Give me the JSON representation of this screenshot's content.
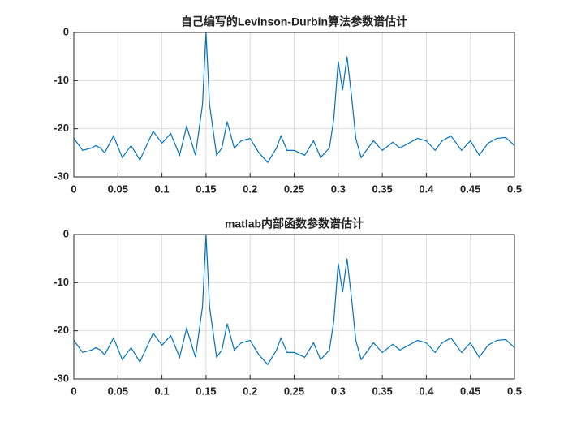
{
  "chart_data": [
    {
      "type": "line",
      "title": "自己编写的Levinson-Durbin算法参数谱估计",
      "x": [
        0,
        0.01,
        0.02,
        0.025,
        0.03,
        0.035,
        0.045,
        0.055,
        0.065,
        0.075,
        0.09,
        0.1,
        0.11,
        0.12,
        0.128,
        0.138,
        0.146,
        0.15,
        0.154,
        0.162,
        0.168,
        0.174,
        0.182,
        0.19,
        0.2,
        0.21,
        0.22,
        0.23,
        0.235,
        0.242,
        0.25,
        0.262,
        0.272,
        0.28,
        0.29,
        0.295,
        0.3,
        0.305,
        0.31,
        0.315,
        0.32,
        0.326,
        0.34,
        0.35,
        0.362,
        0.37,
        0.39,
        0.4,
        0.41,
        0.418,
        0.428,
        0.44,
        0.45,
        0.46,
        0.47,
        0.48,
        0.49,
        0.5
      ],
      "series": [
        {
          "color": "#0072bd",
          "values": [
            -22,
            -24.5,
            -24,
            -23.5,
            -24,
            -25,
            -21.5,
            -26,
            -23.5,
            -26.5,
            -20.5,
            -23,
            -21,
            -25.5,
            -19.5,
            -25.5,
            -15,
            0,
            -15,
            -25.5,
            -24,
            -18.5,
            -24,
            -22.5,
            -22,
            -25,
            -27,
            -24,
            -21.5,
            -24.5,
            -24.5,
            -25.5,
            -22.5,
            -26,
            -24,
            -18,
            -6,
            -12,
            -5,
            -13,
            -22,
            -26,
            -22.5,
            -24.5,
            -22.8,
            -24,
            -22,
            -22.5,
            -24.5,
            -22.5,
            -21.5,
            -24.5,
            -22.5,
            -25.5,
            -23,
            -22,
            -21.8,
            -23.5
          ]
        }
      ],
      "xlim": [
        0,
        0.5
      ],
      "ylim": [
        -30,
        0
      ],
      "xticks": [
        0,
        0.05,
        0.1,
        0.15,
        0.2,
        0.25,
        0.3,
        0.35,
        0.4,
        0.45,
        0.5
      ],
      "yticks": [
        -30,
        -20,
        -10,
        0
      ],
      "grid": true
    },
    {
      "type": "line",
      "title": "matlab内部函数参数谱估计",
      "x": [
        0,
        0.01,
        0.02,
        0.025,
        0.03,
        0.035,
        0.045,
        0.055,
        0.065,
        0.075,
        0.09,
        0.1,
        0.11,
        0.12,
        0.128,
        0.138,
        0.146,
        0.15,
        0.154,
        0.162,
        0.168,
        0.174,
        0.182,
        0.19,
        0.2,
        0.21,
        0.22,
        0.23,
        0.235,
        0.242,
        0.25,
        0.262,
        0.272,
        0.28,
        0.29,
        0.295,
        0.3,
        0.305,
        0.31,
        0.315,
        0.32,
        0.326,
        0.34,
        0.35,
        0.362,
        0.37,
        0.39,
        0.4,
        0.41,
        0.418,
        0.428,
        0.44,
        0.45,
        0.46,
        0.47,
        0.48,
        0.49,
        0.5
      ],
      "series": [
        {
          "color": "#0072bd",
          "values": [
            -22,
            -24.5,
            -24,
            -23.5,
            -24,
            -25,
            -21.5,
            -26,
            -23.5,
            -26.5,
            -20.5,
            -23,
            -21,
            -25.5,
            -19.5,
            -25.5,
            -15,
            0,
            -15,
            -25.5,
            -24,
            -18.5,
            -24,
            -22.5,
            -22,
            -25,
            -27,
            -24,
            -21.5,
            -24.5,
            -24.5,
            -25.5,
            -22.5,
            -26,
            -24,
            -18,
            -6,
            -12,
            -5,
            -13,
            -22,
            -26,
            -22.5,
            -24.5,
            -22.8,
            -24,
            -22,
            -22.5,
            -24.5,
            -22.5,
            -21.5,
            -24.5,
            -22.5,
            -25.5,
            -23,
            -22,
            -21.8,
            -23.5
          ]
        }
      ],
      "xlim": [
        0,
        0.5
      ],
      "ylim": [
        -30,
        0
      ],
      "xticks": [
        0,
        0.05,
        0.1,
        0.15,
        0.2,
        0.25,
        0.3,
        0.35,
        0.4,
        0.45,
        0.5
      ],
      "yticks": [
        -30,
        -20,
        -10,
        0
      ],
      "grid": true
    }
  ]
}
